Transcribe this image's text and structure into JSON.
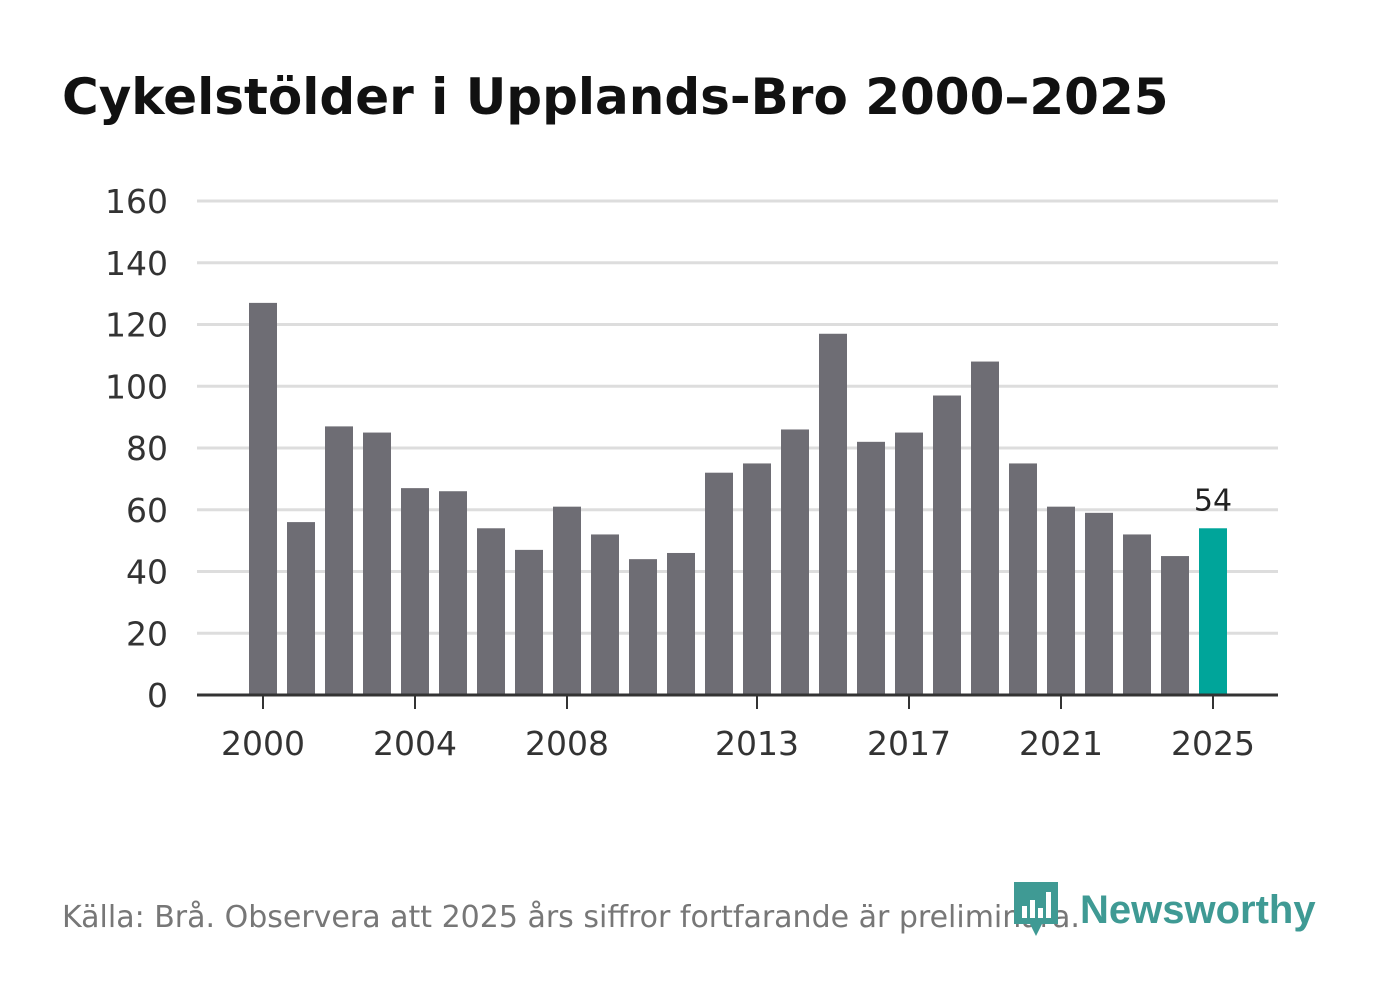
{
  "title": "Cykelstölder i Upplands-Bro 2000–2025",
  "footer": "Källa: Brå. Observera att 2025 års siffror fortfarande är preliminära.",
  "brand": {
    "name": "Newsworthy",
    "icon": "newsworthy-logo-icon"
  },
  "colors": {
    "bar": "#6e6d74",
    "highlight": "#00a59a",
    "grid": "#dddddd",
    "axis": "#333333",
    "brand": "#3f9a94"
  },
  "chart_data": {
    "type": "bar",
    "title": "Cykelstölder i Upplands-Bro 2000–2025",
    "xlabel": "",
    "ylabel": "",
    "categories": [
      2000,
      2001,
      2002,
      2003,
      2004,
      2005,
      2006,
      2007,
      2008,
      2009,
      2010,
      2011,
      2012,
      2013,
      2014,
      2015,
      2016,
      2017,
      2018,
      2019,
      2020,
      2021,
      2022,
      2023,
      2024,
      2025
    ],
    "values": [
      127,
      56,
      87,
      85,
      67,
      66,
      54,
      47,
      61,
      52,
      44,
      46,
      72,
      75,
      86,
      117,
      82,
      85,
      97,
      108,
      75,
      61,
      59,
      52,
      45,
      54
    ],
    "ylim": [
      0,
      160
    ],
    "yticks": [
      0,
      20,
      40,
      60,
      80,
      100,
      120,
      140,
      160
    ],
    "xtick_labels": [
      2000,
      2004,
      2008,
      2013,
      2017,
      2021,
      2025
    ],
    "highlight": {
      "category": 2025,
      "label": "54"
    },
    "grid": true
  }
}
